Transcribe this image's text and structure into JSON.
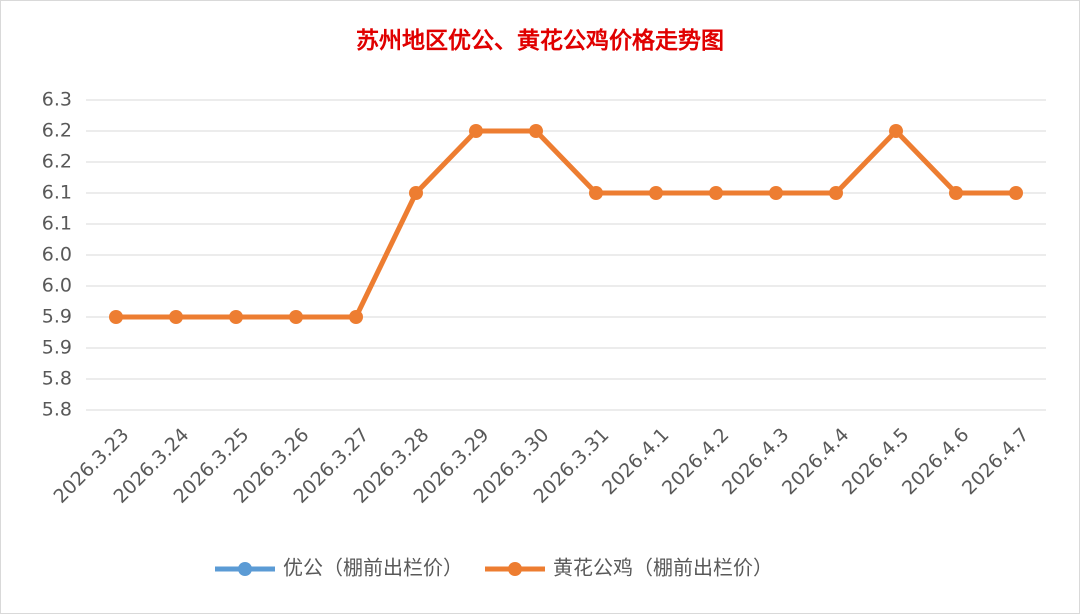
{
  "chart_data": {
    "type": "line",
    "title": "苏州地区优公、黄花公鸡价格走势图",
    "categories": [
      "2026.3.23",
      "2026.3.24",
      "2026.3.25",
      "2026.3.26",
      "2026.3.27",
      "2026.3.28",
      "2026.3.29",
      "2026.3.30",
      "2026.3.31",
      "2026.4.1",
      "2026.4.2",
      "2026.4.3",
      "2026.4.4",
      "2026.4.5",
      "2026.4.6",
      "2026.4.7"
    ],
    "series": [
      {
        "name": "优公（棚前出栏价）",
        "color": "#5b9bd5",
        "values": [
          null,
          null,
          null,
          null,
          null,
          null,
          null,
          null,
          null,
          null,
          null,
          null,
          null,
          null,
          null,
          null
        ]
      },
      {
        "name": "黄花公鸡（棚前出栏价）",
        "color": "#ed7d31",
        "values": [
          5.9,
          5.9,
          5.9,
          5.9,
          5.9,
          6.1,
          6.2,
          6.2,
          6.1,
          6.1,
          6.1,
          6.1,
          6.1,
          6.2,
          6.1,
          6.1
        ]
      }
    ],
    "ylim": [
      5.75,
      6.25
    ],
    "yticks": [
      {
        "value": 5.75,
        "label": "5.8"
      },
      5.8,
      {
        "value": 5.85,
        "label": "5.9"
      },
      5.9,
      {
        "value": 5.95,
        "label": "6.0"
      },
      {
        "value": 6.0,
        "label": "6.0"
      },
      {
        "value": 6.05,
        "label": "6.1"
      },
      6.1,
      {
        "value": 6.15,
        "label": "6.2"
      },
      6.2,
      {
        "value": 6.25,
        "label": "6.3"
      }
    ],
    "grid": true,
    "legend": "bottom"
  }
}
